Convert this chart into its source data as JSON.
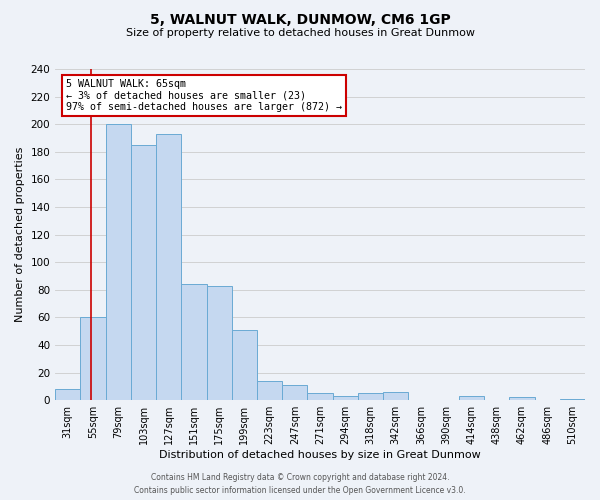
{
  "title": "5, WALNUT WALK, DUNMOW, CM6 1GP",
  "subtitle": "Size of property relative to detached houses in Great Dunmow",
  "xlabel": "Distribution of detached houses by size in Great Dunmow",
  "ylabel": "Number of detached properties",
  "bin_labels": [
    "31sqm",
    "55sqm",
    "79sqm",
    "103sqm",
    "127sqm",
    "151sqm",
    "175sqm",
    "199sqm",
    "223sqm",
    "247sqm",
    "271sqm",
    "294sqm",
    "318sqm",
    "342sqm",
    "366sqm",
    "390sqm",
    "414sqm",
    "438sqm",
    "462sqm",
    "486sqm",
    "510sqm"
  ],
  "bar_heights": [
    8,
    60,
    200,
    185,
    193,
    84,
    83,
    51,
    14,
    11,
    5,
    3,
    5,
    6,
    0,
    0,
    3,
    0,
    2,
    0,
    1
  ],
  "bar_color": "#c5d8f0",
  "bar_edge_color": "#6aaad4",
  "grid_color": "#cccccc",
  "background_color": "#eef2f8",
  "annotation_line1": "5 WALNUT WALK: 65sqm",
  "annotation_line2": "← 3% of detached houses are smaller (23)",
  "annotation_line3": "97% of semi-detached houses are larger (872) →",
  "annotation_box_color": "#ffffff",
  "annotation_border_color": "#cc0000",
  "vline_color": "#cc0000",
  "vline_x_index": 1.417,
  "ylim": [
    0,
    240
  ],
  "yticks": [
    0,
    20,
    40,
    60,
    80,
    100,
    120,
    140,
    160,
    180,
    200,
    220,
    240
  ],
  "footer_line1": "Contains HM Land Registry data © Crown copyright and database right 2024.",
  "footer_line2": "Contains public sector information licensed under the Open Government Licence v3.0."
}
